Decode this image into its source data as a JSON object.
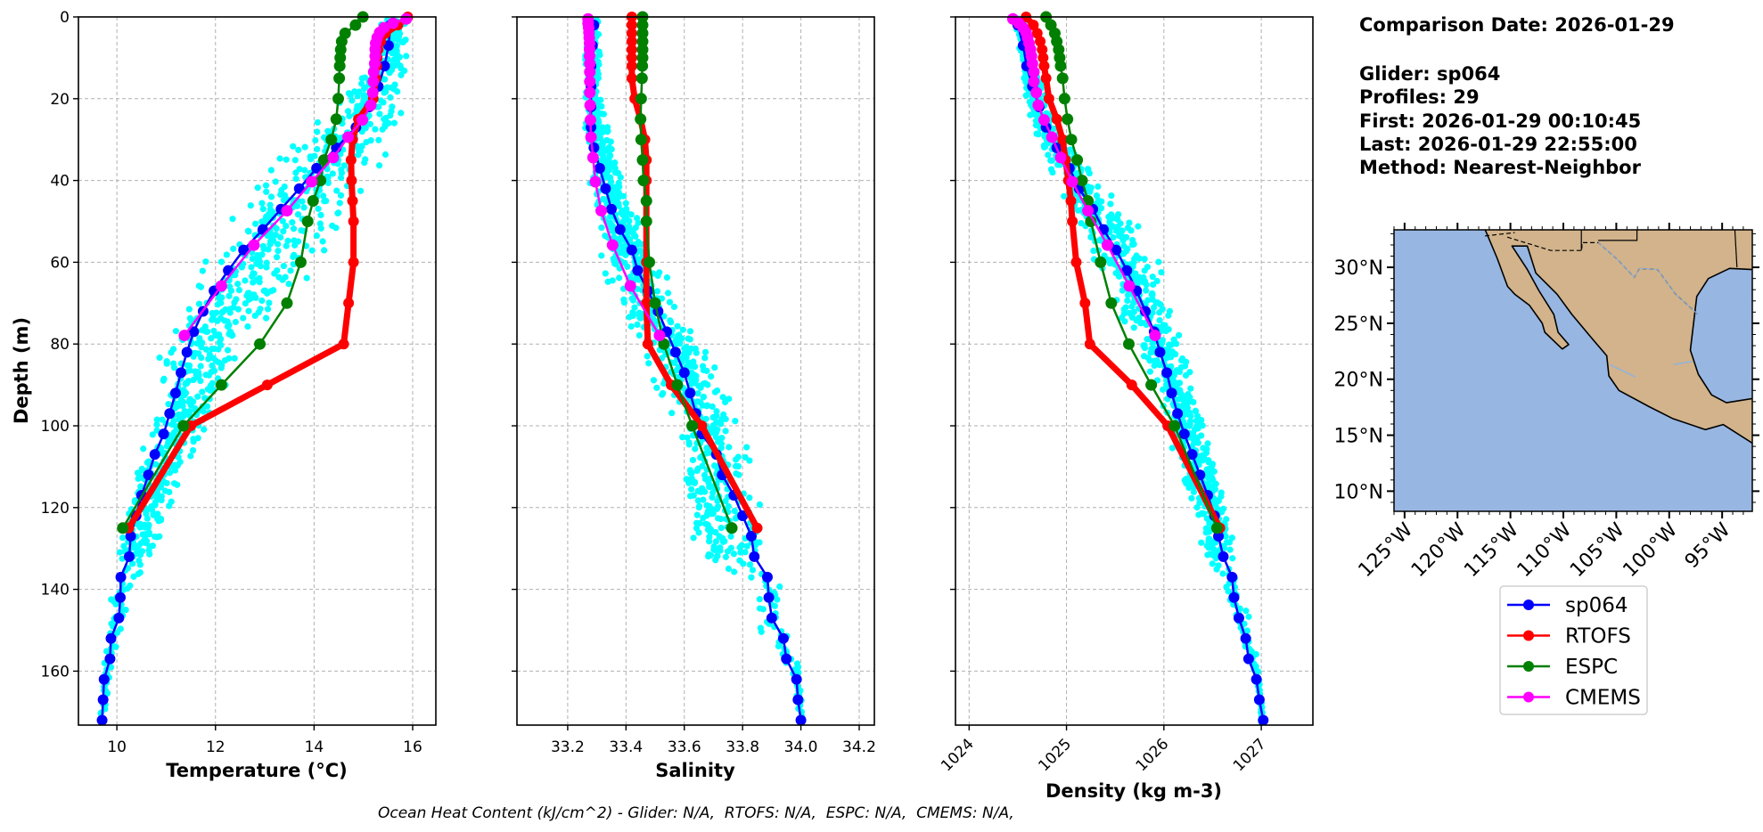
{
  "info": {
    "lines": [
      "Comparison Date: 2026-01-29",
      "Glider: sp064",
      "Profiles: 29",
      "First: 2026-01-29 00:10:45",
      "Last: 2026-01-29 22:55:00",
      "Method: Nearest-Neighbor"
    ]
  },
  "caption": "Ocean Heat Content (kJ/cm^2) - Glider: N/A,  RTOFS: N/A,  ESPC: N/A,  CMEMS: N/A,",
  "colors": {
    "sp064": "#0000ff",
    "RTOFS": "#ff0000",
    "ESPC": "#008000",
    "CMEMS": "#ff00ff",
    "glider_profiles": "#00ffff",
    "grid": "#b0b0b0"
  },
  "legend": {
    "placement": "below map",
    "entries": [
      "sp064",
      "RTOFS",
      "ESPC",
      "CMEMS"
    ]
  },
  "map": {
    "extent_lon": [
      -126,
      -92.15
    ],
    "extent_lat": [
      8.2,
      33.35
    ],
    "lat_ticks": [
      10,
      15,
      20,
      25,
      30
    ],
    "lat_labels": [
      "10°N",
      "15°N",
      "20°N",
      "25°N",
      "30°N"
    ],
    "lon_ticks": [
      -125,
      -120,
      -115,
      -110,
      -105,
      -100,
      -95
    ],
    "lon_labels": [
      "125°W",
      "120°W",
      "115°W",
      "110°W",
      "105°W",
      "100°W",
      "95°W"
    ],
    "ocean_color": "#97b6e1",
    "land_color": "#d2b38b"
  },
  "chart_data": [
    {
      "type": "line",
      "xlabel": "Temperature (°C)",
      "ylabel": "Depth (m)",
      "xlim": [
        9.22,
        16.47
      ],
      "ylim": [
        173.2,
        0
      ],
      "grid": true,
      "xticks": [
        10,
        12,
        14,
        16
      ],
      "xtick_labels": [
        "10",
        "12",
        "14",
        "16"
      ],
      "yticks": [
        0,
        20,
        40,
        60,
        80,
        100,
        120,
        140,
        160
      ],
      "ytick_labels": [
        "0",
        "20",
        "40",
        "60",
        "80",
        "100",
        "120",
        "140",
        "160"
      ],
      "glider_profiles_range": {
        "depth": [
          2,
          10,
          20,
          30,
          40,
          50,
          60,
          70,
          80,
          90,
          100,
          110,
          120,
          130,
          132,
          140,
          150,
          160,
          172
        ],
        "min": [
          15.2,
          15.3,
          14.5,
          13.7,
          12.9,
          12.3,
          11.7,
          11.4,
          10.9,
          10.8,
          10.6,
          10.3,
          10.2,
          10.0,
          10.0,
          9.9,
          9.8,
          9.72,
          9.65
        ],
        "max": [
          16.0,
          15.9,
          15.8,
          15.7,
          15.1,
          14.5,
          14.2,
          13.4,
          12.6,
          12.2,
          11.8,
          11.4,
          11.1,
          10.8,
          10.8,
          10.3,
          10.1,
          9.9,
          9.75
        ]
      },
      "series": [
        {
          "name": "sp064",
          "depth": [
            2,
            7,
            12,
            17,
            22,
            27,
            32,
            37,
            42,
            47,
            52,
            57,
            62,
            67,
            72,
            77,
            82,
            87,
            92,
            97,
            102,
            107,
            112,
            117,
            122,
            127,
            132,
            137,
            142,
            147,
            152,
            157,
            162,
            167,
            172
          ],
          "values": [
            15.55,
            15.51,
            15.43,
            15.3,
            15.12,
            14.85,
            14.45,
            14.05,
            13.7,
            13.33,
            12.96,
            12.57,
            12.26,
            11.97,
            11.75,
            11.56,
            11.42,
            11.3,
            11.19,
            11.07,
            10.95,
            10.77,
            10.64,
            10.5,
            10.39,
            10.28,
            10.25,
            10.08,
            10.07,
            10.04,
            9.88,
            9.86,
            9.74,
            9.72,
            9.7
          ]
        },
        {
          "name": "RTOFS",
          "depth": [
            0,
            2,
            4,
            6,
            8,
            10,
            12,
            15,
            20,
            25,
            30,
            35,
            40,
            45,
            50,
            60,
            70,
            80,
            90,
            100,
            125
          ],
          "values": [
            15.9,
            15.7,
            15.45,
            15.35,
            15.3,
            15.28,
            15.27,
            15.25,
            15.2,
            14.9,
            14.78,
            14.75,
            14.76,
            14.78,
            14.8,
            14.8,
            14.7,
            14.6,
            13.05,
            11.5,
            10.24
          ]
        },
        {
          "name": "ESPC",
          "depth": [
            0,
            2,
            4,
            6,
            8,
            10,
            12,
            15,
            20,
            25,
            30,
            35,
            40,
            45,
            50,
            60,
            70,
            80,
            90,
            100,
            125
          ],
          "values": [
            14.99,
            14.84,
            14.63,
            14.56,
            14.54,
            14.53,
            14.52,
            14.51,
            14.49,
            14.45,
            14.35,
            14.2,
            14.13,
            13.98,
            13.87,
            13.73,
            13.45,
            12.9,
            12.12,
            11.35,
            10.12
          ]
        },
        {
          "name": "CMEMS",
          "depth": [
            0.49,
            1.54,
            2.65,
            3.82,
            5.08,
            6.44,
            7.93,
            9.57,
            11.4,
            13.47,
            15.81,
            18.5,
            21.6,
            25.2,
            29.4,
            34.4,
            40.3,
            47.4,
            55.8,
            65.8,
            77.9
          ],
          "values": [
            15.87,
            15.6,
            15.42,
            15.33,
            15.28,
            15.25,
            15.24,
            15.24,
            15.23,
            15.21,
            15.2,
            15.19,
            15.15,
            14.98,
            14.69,
            14.39,
            13.95,
            13.45,
            12.78,
            12.12,
            11.37
          ]
        }
      ]
    },
    {
      "type": "line",
      "xlabel": "Salinity",
      "xlim": [
        33.026,
        34.252
      ],
      "ylim": [
        173.2,
        0
      ],
      "grid": true,
      "xticks": [
        33.2,
        33.4,
        33.6,
        33.8,
        34.0,
        34.2
      ],
      "xtick_labels": [
        "33.2",
        "33.4",
        "33.6",
        "33.8",
        "34.0",
        "34.2"
      ],
      "yticks": [
        0,
        20,
        40,
        60,
        80,
        100,
        120,
        140,
        160
      ],
      "glider_profiles_range": {
        "depth": [
          2,
          10,
          20,
          30,
          40,
          50,
          60,
          70,
          80,
          90,
          100,
          110,
          120,
          130,
          132,
          140,
          150,
          160,
          172
        ],
        "min": [
          33.27,
          33.26,
          33.26,
          33.26,
          33.27,
          33.3,
          33.32,
          33.36,
          33.46,
          33.5,
          33.55,
          33.58,
          33.6,
          33.62,
          33.62,
          33.83,
          33.86,
          33.97,
          33.99
        ],
        "max": [
          33.31,
          33.31,
          33.31,
          33.36,
          33.4,
          33.45,
          33.52,
          33.58,
          33.66,
          33.74,
          33.8,
          33.83,
          33.86,
          33.9,
          33.9,
          33.93,
          33.96,
          34.0,
          34.01
        ]
      },
      "series": [
        {
          "name": "sp064",
          "depth": [
            2,
            7,
            12,
            17,
            22,
            27,
            32,
            37,
            42,
            47,
            52,
            57,
            62,
            67,
            72,
            77,
            82,
            87,
            92,
            97,
            102,
            107,
            112,
            117,
            122,
            127,
            132,
            137,
            142,
            147,
            152,
            157,
            162,
            167,
            172
          ],
          "values": [
            33.29,
            33.285,
            33.28,
            33.28,
            33.28,
            33.28,
            33.29,
            33.31,
            33.33,
            33.35,
            33.38,
            33.42,
            33.44,
            33.475,
            33.51,
            33.54,
            33.57,
            33.6,
            33.62,
            33.64,
            33.66,
            33.71,
            33.73,
            33.77,
            33.8,
            33.83,
            33.84,
            33.885,
            33.89,
            33.9,
            33.94,
            33.95,
            33.985,
            33.99,
            34.0
          ]
        },
        {
          "name": "RTOFS",
          "depth": [
            0,
            2,
            4,
            6,
            8,
            10,
            12,
            15,
            20,
            25,
            30,
            35,
            40,
            45,
            50,
            60,
            70,
            80,
            90,
            100,
            125
          ],
          "values": [
            33.42,
            33.42,
            33.42,
            33.42,
            33.42,
            33.42,
            33.42,
            33.42,
            33.43,
            33.45,
            33.465,
            33.47,
            33.47,
            33.47,
            33.47,
            33.47,
            33.47,
            33.475,
            33.555,
            33.66,
            33.85
          ]
        },
        {
          "name": "ESPC",
          "depth": [
            0,
            2,
            4,
            6,
            8,
            10,
            12,
            15,
            20,
            25,
            30,
            35,
            40,
            45,
            50,
            60,
            70,
            80,
            90,
            100,
            125
          ],
          "values": [
            33.457,
            33.457,
            33.457,
            33.457,
            33.457,
            33.457,
            33.456,
            33.455,
            33.452,
            33.45,
            33.452,
            33.457,
            33.46,
            33.47,
            33.47,
            33.48,
            33.5,
            33.53,
            33.576,
            33.627,
            33.763
          ]
        },
        {
          "name": "CMEMS",
          "depth": [
            0.49,
            1.54,
            2.65,
            3.82,
            5.08,
            6.44,
            7.93,
            9.57,
            11.4,
            13.47,
            15.81,
            18.5,
            21.6,
            25.2,
            29.4,
            34.4,
            40.3,
            47.4,
            55.8,
            65.8,
            77.9
          ],
          "values": [
            33.27,
            33.27,
            33.272,
            33.273,
            33.274,
            33.275,
            33.275,
            33.275,
            33.276,
            33.276,
            33.276,
            33.276,
            33.277,
            33.278,
            33.28,
            33.287,
            33.295,
            33.315,
            33.354,
            33.415,
            33.515
          ]
        }
      ]
    },
    {
      "type": "line",
      "xlabel": "Density (kg m-3)",
      "xlim": [
        1023.86,
        1027.53
      ],
      "ylim": [
        173.2,
        0
      ],
      "grid": true,
      "xticks": [
        1024,
        1025,
        1026,
        1027
      ],
      "xtick_labels": [
        "1024",
        "1025",
        "1026",
        "1027"
      ],
      "yticks": [
        0,
        20,
        40,
        60,
        80,
        100,
        120,
        140,
        160
      ],
      "glider_profiles_range": {
        "depth": [
          2,
          10,
          20,
          30,
          40,
          50,
          60,
          70,
          80,
          90,
          100,
          110,
          120,
          130,
          132,
          140,
          150,
          160,
          172
        ],
        "min": [
          1024.45,
          1024.5,
          1024.58,
          1024.66,
          1024.9,
          1025.1,
          1025.3,
          1025.5,
          1025.7,
          1025.9,
          1026.0,
          1026.15,
          1026.3,
          1026.4,
          1026.4,
          1026.62,
          1026.75,
          1026.93,
          1027.0
        ],
        "max": [
          1024.6,
          1024.66,
          1024.8,
          1025.0,
          1025.32,
          1025.7,
          1025.95,
          1026.05,
          1026.2,
          1026.3,
          1026.5,
          1026.6,
          1026.65,
          1026.72,
          1026.72,
          1026.8,
          1026.9,
          1026.98,
          1027.03
        ]
      },
      "series": [
        {
          "name": "sp064",
          "depth": [
            2,
            7,
            12,
            17,
            22,
            27,
            32,
            37,
            42,
            47,
            52,
            57,
            62,
            67,
            72,
            77,
            82,
            87,
            92,
            97,
            102,
            107,
            112,
            117,
            122,
            127,
            132,
            137,
            142,
            147,
            152,
            157,
            162,
            167,
            172
          ],
          "values": [
            1024.5,
            1024.555,
            1024.59,
            1024.65,
            1024.72,
            1024.79,
            1024.9,
            1025.03,
            1025.13,
            1025.27,
            1025.38,
            1025.51,
            1025.62,
            1025.72,
            1025.81,
            1025.9,
            1025.96,
            1026.03,
            1026.08,
            1026.14,
            1026.21,
            1026.29,
            1026.37,
            1026.45,
            1026.52,
            1026.56,
            1026.61,
            1026.7,
            1026.72,
            1026.77,
            1026.84,
            1026.87,
            1026.95,
            1026.98,
            1027.02
          ]
        },
        {
          "name": "RTOFS",
          "depth": [
            0,
            2,
            4,
            6,
            8,
            10,
            12,
            15,
            20,
            25,
            30,
            35,
            40,
            45,
            50,
            60,
            70,
            80,
            90,
            100,
            125
          ],
          "values": [
            1024.585,
            1024.66,
            1024.7,
            1024.73,
            1024.75,
            1024.76,
            1024.77,
            1024.79,
            1024.82,
            1024.9,
            1024.96,
            1024.99,
            1025.02,
            1025.045,
            1025.06,
            1025.1,
            1025.19,
            1025.24,
            1025.67,
            1026.04,
            1026.575
          ]
        },
        {
          "name": "ESPC",
          "depth": [
            0,
            2,
            4,
            6,
            8,
            10,
            12,
            15,
            20,
            25,
            30,
            35,
            40,
            45,
            50,
            60,
            70,
            80,
            90,
            100,
            125
          ],
          "values": [
            1024.79,
            1024.84,
            1024.88,
            1024.9,
            1024.92,
            1024.93,
            1024.94,
            1024.96,
            1024.98,
            1025.01,
            1025.05,
            1025.11,
            1025.16,
            1025.22,
            1025.25,
            1025.35,
            1025.46,
            1025.64,
            1025.87,
            1026.11,
            1026.545
          ]
        },
        {
          "name": "CMEMS",
          "depth": [
            0.49,
            1.54,
            2.65,
            3.82,
            5.08,
            6.44,
            7.93,
            9.57,
            11.4,
            13.47,
            15.81,
            18.5,
            21.6,
            25.2,
            29.4,
            34.4,
            40.3,
            47.4,
            55.8,
            65.8,
            77.9
          ],
          "values": [
            1024.45,
            1024.51,
            1024.555,
            1024.585,
            1024.6,
            1024.615,
            1024.63,
            1024.64,
            1024.65,
            1024.665,
            1024.665,
            1024.69,
            1024.71,
            1024.77,
            1024.85,
            1024.94,
            1025.06,
            1025.22,
            1025.42,
            1025.645,
            1025.91
          ]
        }
      ]
    }
  ]
}
